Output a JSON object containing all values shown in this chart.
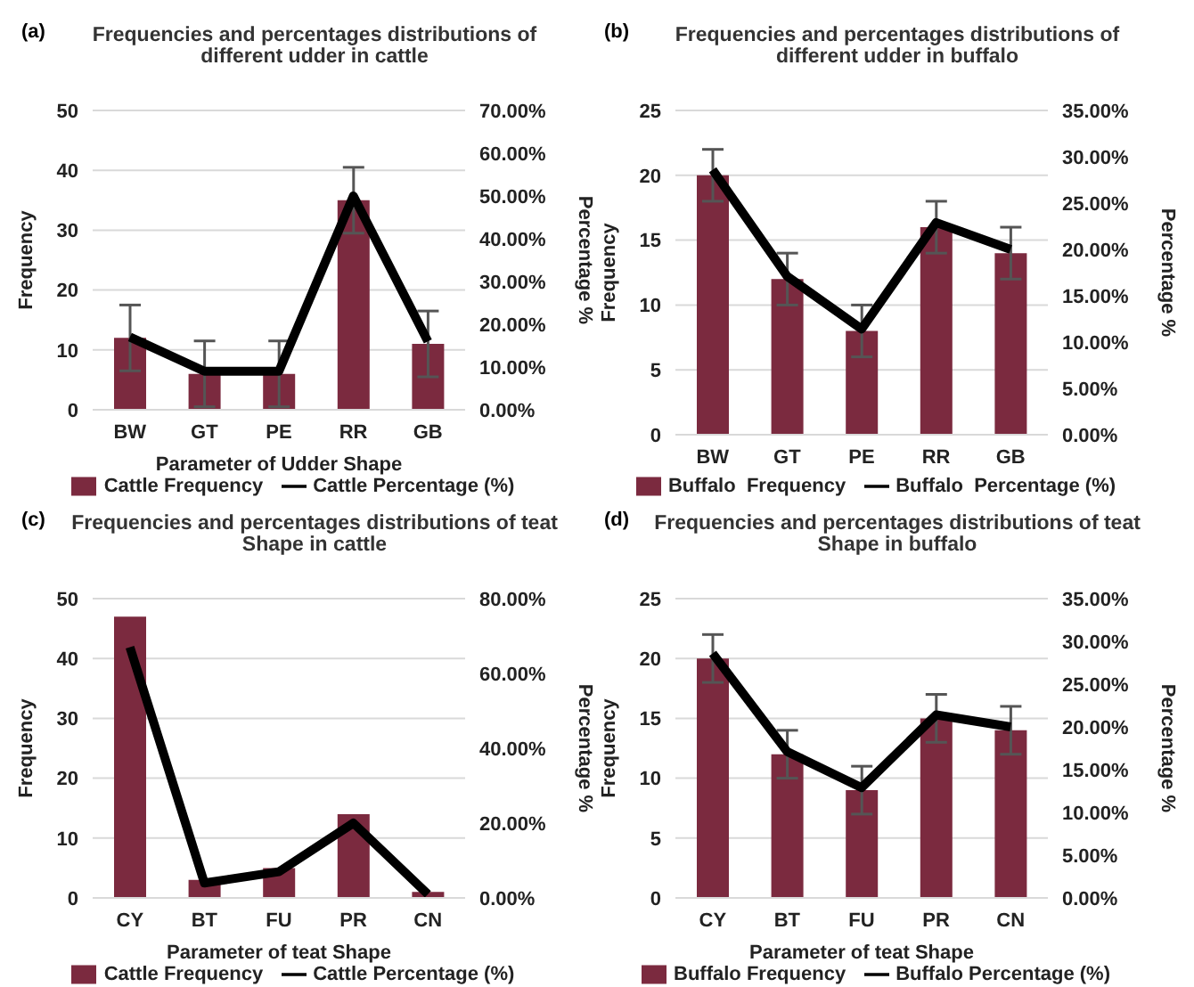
{
  "chart_data": [
    {
      "type": "bar",
      "title": "Frequencies and percentages distributions of different udder in cattle",
      "annotations": [
        "(a)"
      ],
      "xlabel": "Parameter of Udder Shape",
      "ylabel": "Frequency",
      "y2label": "Percentage %",
      "categories": [
        "BW",
        "GT",
        "PE",
        "RR",
        "GB"
      ],
      "series": [
        {
          "name": "Cattle Frequency",
          "color": "#7b2a3f",
          "values": [
            12,
            6,
            6,
            35,
            11
          ],
          "errors": [
            5.5,
            5.5,
            5.5,
            5.5,
            5.5
          ]
        },
        {
          "name": "Cattle Percentage (%)",
          "type": "line",
          "axis": "y2",
          "color": "#000000",
          "values": [
            17,
            9,
            9,
            50,
            16
          ]
        }
      ],
      "ylim": [
        0,
        50
      ],
      "yticks": [
        0,
        10,
        20,
        30,
        40,
        50
      ],
      "y2lim": [
        0,
        70
      ],
      "y2ticks": [
        {
          "value": 0,
          "label": "0.00%"
        },
        {
          "value": 10,
          "label": "10.00%"
        },
        {
          "value": 20,
          "label": "20.00%"
        },
        {
          "value": 30,
          "label": "30.00%"
        },
        {
          "value": 40,
          "label": "40.00%"
        },
        {
          "value": 50,
          "label": "50.00%"
        },
        {
          "value": 60,
          "label": "60.00%"
        },
        {
          "value": 70,
          "label": "70.00%"
        }
      ],
      "grid": "y",
      "legend": "bottom",
      "marker": "none"
    },
    {
      "type": "bar",
      "title": "Frequencies and percentages distributions of different udder in buffalo",
      "annotations": [
        "(b)"
      ],
      "ylabel": "Frequency",
      "y2label": "Percentage %",
      "categories": [
        "BW",
        "GT",
        "PE",
        "RR",
        "GB"
      ],
      "series": [
        {
          "name": "Buffalo  Frequency",
          "color": "#7b2a3f",
          "values": [
            20,
            12,
            8,
            16,
            14
          ],
          "errors": [
            2,
            2,
            2,
            2,
            2
          ]
        },
        {
          "name": "Buffalo  Percentage (%)",
          "type": "line",
          "axis": "y2",
          "color": "#000000",
          "values": [
            28.6,
            17.1,
            11.4,
            22.9,
            20
          ]
        }
      ],
      "ylim": [
        0,
        25
      ],
      "yticks": [
        0,
        5,
        10,
        15,
        20,
        25
      ],
      "y2lim": [
        0,
        35
      ],
      "y2ticks": [
        {
          "value": 0,
          "label": "0.00%"
        },
        {
          "value": 5,
          "label": "5.00%"
        },
        {
          "value": 10,
          "label": "10.00%"
        },
        {
          "value": 15,
          "label": "15.00%"
        },
        {
          "value": 20,
          "label": "20.00%"
        },
        {
          "value": 25,
          "label": "25.00%"
        },
        {
          "value": 30,
          "label": "30.00%"
        },
        {
          "value": 35,
          "label": "35.00%"
        }
      ],
      "grid": "y",
      "legend": "bottom",
      "marker": "none"
    },
    {
      "type": "bar",
      "title": "Frequencies and percentages distributions of teat Shape in cattle",
      "annotations": [
        "(c)"
      ],
      "xlabel": "Parameter of teat Shape",
      "ylabel": "Frequency",
      "y2label": "Percentage %",
      "categories": [
        "CY",
        "BT",
        "FU",
        "PR",
        "CN"
      ],
      "series": [
        {
          "name": "Cattle Frequency",
          "color": "#7b2a3f",
          "values": [
            47,
            3,
            5,
            14,
            1
          ]
        },
        {
          "name": "Cattle Percentage (%)",
          "type": "line",
          "axis": "y2",
          "color": "#000000",
          "values": [
            67,
            4,
            7,
            20,
            1
          ]
        }
      ],
      "ylim": [
        0,
        50
      ],
      "yticks": [
        0,
        10,
        20,
        30,
        40,
        50
      ],
      "y2lim": [
        0,
        80
      ],
      "y2ticks": [
        {
          "value": 0,
          "label": "0.00%"
        },
        {
          "value": 20,
          "label": "20.00%"
        },
        {
          "value": 40,
          "label": "40.00%"
        },
        {
          "value": 60,
          "label": "60.00%"
        },
        {
          "value": 80,
          "label": "80.00%"
        }
      ],
      "grid": "y",
      "legend": "bottom",
      "marker": "none"
    },
    {
      "type": "bar",
      "title": "Frequencies and percentages distributions of teat Shape in buffalo",
      "annotations": [
        "(d)"
      ],
      "xlabel": "Parameter of teat Shape",
      "ylabel": "Frequency",
      "y2label": "Percentage %",
      "categories": [
        "CY",
        "BT",
        "FU",
        "PR",
        "CN"
      ],
      "series": [
        {
          "name": "Buffalo Frequency",
          "color": "#7b2a3f",
          "values": [
            20,
            12,
            9,
            15,
            14
          ],
          "errors": [
            2,
            2,
            2,
            2,
            2
          ]
        },
        {
          "name": "Buffalo Percentage (%)",
          "type": "line",
          "axis": "y2",
          "color": "#000000",
          "values": [
            28.6,
            17.1,
            12.9,
            21.4,
            20
          ]
        }
      ],
      "ylim": [
        0,
        25
      ],
      "yticks": [
        0,
        5,
        10,
        15,
        20,
        25
      ],
      "y2lim": [
        0,
        35
      ],
      "y2ticks": [
        {
          "value": 0,
          "label": "0.00%"
        },
        {
          "value": 5,
          "label": "5.00%"
        },
        {
          "value": 10,
          "label": "10.00%"
        },
        {
          "value": 15,
          "label": "15.00%"
        },
        {
          "value": 20,
          "label": "20.00%"
        },
        {
          "value": 25,
          "label": "25.00%"
        },
        {
          "value": 30,
          "label": "30.00%"
        },
        {
          "value": 35,
          "label": "35.00%"
        }
      ],
      "grid": "y",
      "legend": "bottom",
      "marker": "none"
    }
  ]
}
